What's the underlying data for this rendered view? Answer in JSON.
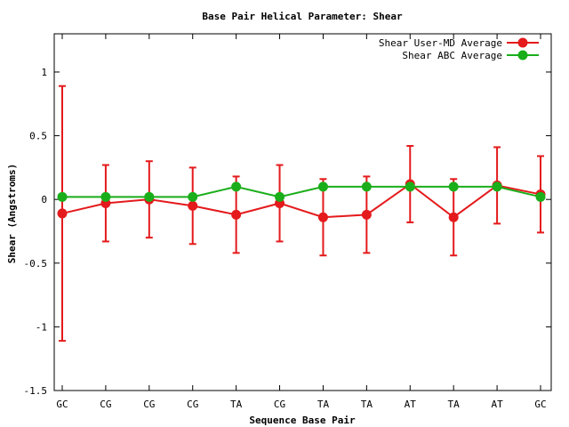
{
  "chart_data": {
    "type": "line",
    "title": "Base Pair Helical Parameter: Shear",
    "xlabel": "Sequence Base Pair",
    "ylabel": "Shear (Angstroms)",
    "categories": [
      "GC",
      "CG",
      "CG",
      "CG",
      "TA",
      "CG",
      "TA",
      "TA",
      "AT",
      "TA",
      "AT",
      "GC"
    ],
    "ylim": [
      -1.5,
      1.3
    ],
    "yticks": [
      -1.5,
      -1,
      -0.5,
      0,
      0.5,
      1
    ],
    "ytick_labels": [
      "-1.5",
      "-1",
      "-0.5",
      "0",
      "0.5",
      "1"
    ],
    "grid": false,
    "legend_position": "top-right",
    "series": [
      {
        "name": "Shear User-MD Average",
        "color": "#e41a1c",
        "values": [
          -0.11,
          -0.03,
          0.0,
          -0.05,
          -0.12,
          -0.03,
          -0.14,
          -0.12,
          0.12,
          -0.14,
          0.11,
          0.04
        ],
        "error_low": [
          -1.11,
          -0.33,
          -0.3,
          -0.35,
          -0.42,
          -0.33,
          -0.44,
          -0.42,
          -0.18,
          -0.44,
          -0.19,
          -0.26
        ],
        "error_high": [
          0.89,
          0.27,
          0.3,
          0.25,
          0.18,
          0.27,
          0.16,
          0.18,
          0.42,
          0.16,
          0.41,
          0.34
        ]
      },
      {
        "name": "Shear ABC Average",
        "color": "#1aae1a",
        "values": [
          0.02,
          0.02,
          0.02,
          0.02,
          0.1,
          0.02,
          0.1,
          0.1,
          0.1,
          0.1,
          0.1,
          0.02
        ]
      }
    ]
  }
}
